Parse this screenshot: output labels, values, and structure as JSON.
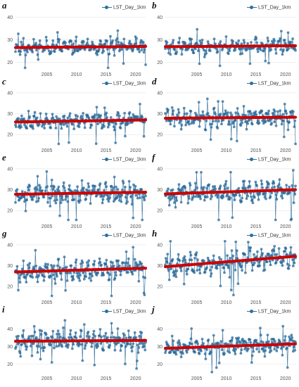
{
  "colors": {
    "series": "#2a6a9a",
    "trend": "#cc0000",
    "grid": "#e3e3e3",
    "text": "#555555"
  },
  "chart_data": [
    {
      "panel": "a",
      "type": "line",
      "legend": "LST_Day_1km",
      "x_range": [
        2000.2,
        2022.2
      ],
      "xticks": [
        2005,
        2010,
        2015,
        2020
      ],
      "ylim": [
        17,
        42
      ],
      "yticks": [
        20,
        30,
        40
      ],
      "trend": {
        "start": 26.5,
        "end": 27.0
      },
      "noise": {
        "mean": 26.8,
        "spread": 3.2,
        "low_spikes": 4,
        "high_spikes": 3,
        "seed": 11
      }
    },
    {
      "panel": "b",
      "type": "line",
      "legend": "LST_Day_1km",
      "x_range": [
        2000.2,
        2022.2
      ],
      "xticks": [
        2005,
        2010,
        2015,
        2020
      ],
      "ylim": [
        17,
        42
      ],
      "yticks": [
        20,
        30,
        40
      ],
      "trend": {
        "start": 26.9,
        "end": 27.3
      },
      "noise": {
        "mean": 27.1,
        "spread": 3.0,
        "low_spikes": 5,
        "high_spikes": 3,
        "seed": 23
      }
    },
    {
      "panel": "c",
      "type": "line",
      "legend": "LST_Day_1km",
      "x_range": [
        2000.2,
        2022.2
      ],
      "xticks": [
        2005,
        2010,
        2015,
        2020
      ],
      "ylim": [
        15,
        42
      ],
      "yticks": [
        20,
        30,
        40
      ],
      "trend": {
        "start": 26.0,
        "end": 27.0
      },
      "noise": {
        "mean": 26.5,
        "spread": 3.3,
        "low_spikes": 6,
        "high_spikes": 3,
        "seed": 37
      }
    },
    {
      "panel": "d",
      "type": "line",
      "legend": "LST_Day_1km",
      "x_range": [
        2000.2,
        2022.2
      ],
      "xticks": [
        2005,
        2010,
        2015,
        2020
      ],
      "ylim": [
        15,
        42
      ],
      "yticks": [
        20,
        30,
        40
      ],
      "trend": {
        "start": 27.8,
        "end": 28.3
      },
      "noise": {
        "mean": 28.0,
        "spread": 4.0,
        "low_spikes": 5,
        "high_spikes": 4,
        "seed": 41
      }
    },
    {
      "panel": "e",
      "type": "line",
      "legend": "LST_Day_1km",
      "x_range": [
        2000.2,
        2022.2
      ],
      "xticks": [
        2005,
        2010,
        2015,
        2020
      ],
      "ylim": [
        15,
        42
      ],
      "yticks": [
        20,
        30,
        40
      ],
      "trend": {
        "start": 27.8,
        "end": 28.8
      },
      "noise": {
        "mean": 28.3,
        "spread": 4.2,
        "low_spikes": 6,
        "high_spikes": 3,
        "seed": 53
      }
    },
    {
      "panel": "f",
      "type": "line",
      "legend": "LST_Day_1km",
      "x_range": [
        2000.2,
        2022.2
      ],
      "xticks": [
        2005,
        2010,
        2015,
        2020
      ],
      "ylim": [
        15,
        42
      ],
      "yticks": [
        20,
        30,
        40
      ],
      "trend": {
        "start": 28.0,
        "end": 30.0
      },
      "noise": {
        "mean": 29.0,
        "spread": 4.3,
        "low_spikes": 5,
        "high_spikes": 4,
        "seed": 67
      }
    },
    {
      "panel": "g",
      "type": "line",
      "legend": "LST_Day_1km",
      "x_range": [
        2000.2,
        2022.2
      ],
      "xticks": [
        2005,
        2010,
        2015,
        2020
      ],
      "ylim": [
        15,
        42
      ],
      "yticks": [
        20,
        30,
        40
      ],
      "trend": {
        "start": 27.0,
        "end": 28.8
      },
      "noise": {
        "mean": 28.0,
        "spread": 4.2,
        "low_spikes": 6,
        "high_spikes": 3,
        "seed": 79
      }
    },
    {
      "panel": "h",
      "type": "line",
      "legend": "LST_Day_1km",
      "x_range": [
        2000.2,
        2022.2
      ],
      "xticks": [
        2005,
        2010,
        2015,
        2020
      ],
      "ylim": [
        15,
        42
      ],
      "yticks": [
        20,
        30,
        40
      ],
      "trend": {
        "start": 29.5,
        "end": 34.5
      },
      "noise": {
        "mean": 32.0,
        "spread": 4.6,
        "low_spikes": 6,
        "high_spikes": 4,
        "seed": 83
      }
    },
    {
      "panel": "i",
      "type": "line",
      "legend": "LST_Day_1km",
      "x_range": [
        2000.2,
        2022.2
      ],
      "xticks": [
        2005,
        2010,
        2015,
        2020
      ],
      "ylim": [
        15,
        47
      ],
      "yticks": [
        20,
        30,
        40
      ],
      "trend": {
        "start": 33.0,
        "end": 33.5
      },
      "noise": {
        "mean": 33.2,
        "spread": 5.0,
        "low_spikes": 7,
        "high_spikes": 3,
        "seed": 97
      }
    },
    {
      "panel": "j",
      "type": "line",
      "legend": "LST_Day_1km",
      "x_range": [
        2000.2,
        2022.2
      ],
      "xticks": [
        2005,
        2010,
        2015,
        2020
      ],
      "ylim": [
        15,
        47
      ],
      "yticks": [
        20,
        30,
        40
      ],
      "trend": {
        "start": 29.0,
        "end": 31.5
      },
      "noise": {
        "mean": 30.3,
        "spread": 4.6,
        "low_spikes": 6,
        "high_spikes": 4,
        "seed": 109
      }
    }
  ]
}
